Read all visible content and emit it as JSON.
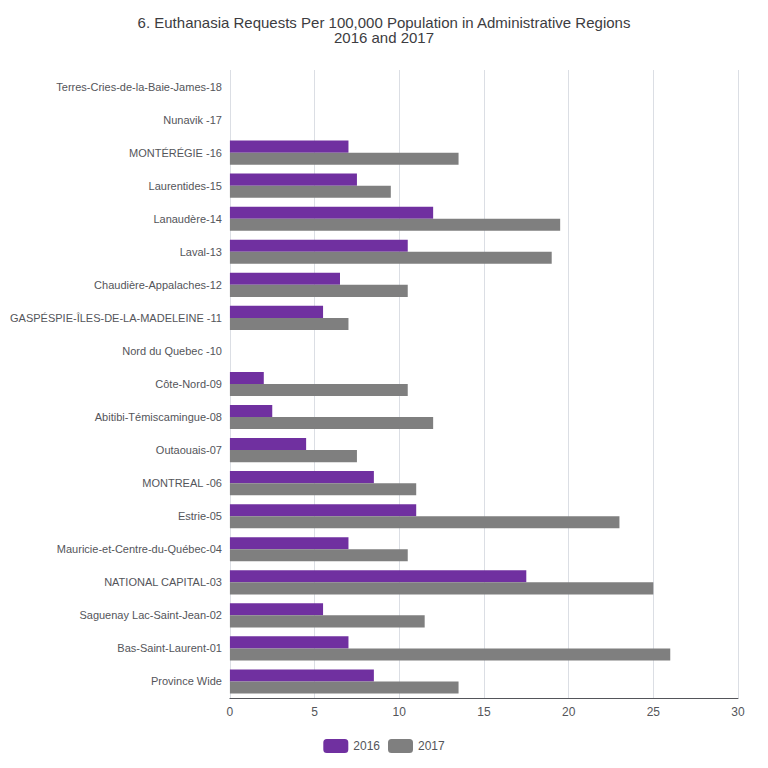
{
  "chart_data": {
    "type": "bar",
    "orientation": "horizontal",
    "title": "6. Euthanasia Requests Per 100,000 Population in Administrative Regions\n2016 and 2017",
    "categories": [
      "Terres-Cries-de-la-Baie-James-18",
      "Nunavik -17",
      "MONTÉRÉGIE -16",
      "Laurentides-15",
      "Lanaudère-14",
      "Laval-13",
      "Chaudière-Appalaches-12",
      "GASPÉSPIE-ÎLES-DE-LA-MADELEINE -11",
      "Nord du Quebec -10",
      "Côte-Nord-09",
      "Abitibi-Témiscamingue-08",
      "Outaouais-07",
      "MONTREAL -06",
      "Estrie-05",
      "Mauricie-et-Centre-du-Québec-04",
      "NATIONAL CAPITAL-03",
      "Saguenay Lac-Saint-Jean-02",
      "Bas-Saint-Laurent-01",
      "Province Wide"
    ],
    "series": [
      {
        "name": "2016",
        "color": "#7030A0",
        "values": [
          0,
          0,
          7.0,
          7.5,
          12.0,
          10.5,
          6.5,
          5.5,
          0,
          2.0,
          2.5,
          4.5,
          8.5,
          11.0,
          7.0,
          17.5,
          5.5,
          7.0,
          8.5
        ]
      },
      {
        "name": "2017",
        "color": "#7F7F7F",
        "values": [
          0,
          0,
          13.5,
          9.5,
          19.5,
          19.0,
          10.5,
          7.0,
          0,
          10.5,
          12.0,
          7.5,
          11.0,
          23.0,
          10.5,
          25.0,
          11.5,
          26.0,
          13.5
        ]
      }
    ],
    "xlim": [
      0,
      30
    ],
    "xticks": [
      0,
      5,
      10,
      15,
      20,
      25,
      30
    ],
    "grid": true,
    "legend": "bottom"
  }
}
